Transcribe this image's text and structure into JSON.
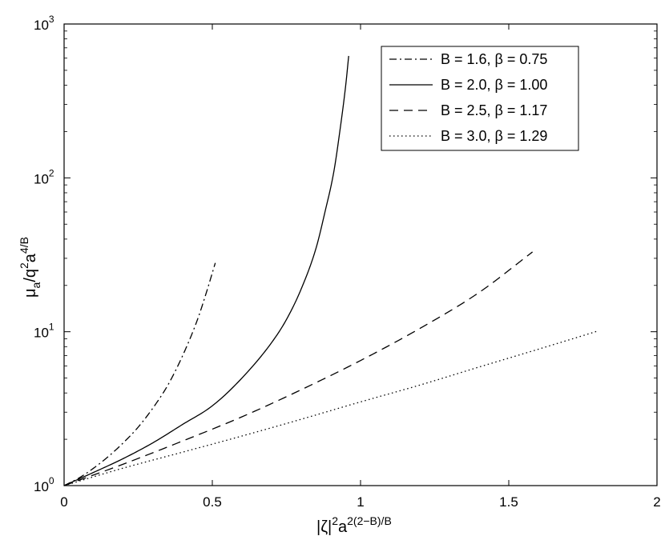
{
  "chart_data": {
    "type": "line",
    "xlabel": "|ζ|²a^(2(2−B)/B)",
    "ylabel": "μa/q²a^(4/B)",
    "xlabel_parts": {
      "base": "|ζ|",
      "sup1": "2",
      "mid": "a",
      "sup2": "2(2−B)/B"
    },
    "ylabel_parts": {
      "base": "μ",
      "sub": "a",
      "mid": "/q",
      "sup1": "2",
      "mid2": "a",
      "sup2": "4/B"
    },
    "xlim": [
      0,
      2
    ],
    "ylim": [
      1,
      1000
    ],
    "yscale": "log",
    "grid": false,
    "legend_position": "top-right",
    "x_ticks": [
      {
        "value": 0,
        "label": "0"
      },
      {
        "value": 0.5,
        "label": "0.5"
      },
      {
        "value": 1,
        "label": "1"
      },
      {
        "value": 1.5,
        "label": "1.5"
      },
      {
        "value": 2,
        "label": "2"
      }
    ],
    "y_ticks": [
      {
        "value": 1,
        "base": "10",
        "exp": "0"
      },
      {
        "value": 10,
        "base": "10",
        "exp": "1"
      },
      {
        "value": 100,
        "base": "10",
        "exp": "2"
      },
      {
        "value": 1000,
        "base": "10",
        "exp": "3"
      }
    ],
    "series": [
      {
        "name": "B = 1.6, β = 0.75",
        "style": "dashdot",
        "x": [
          0,
          0.05,
          0.1,
          0.15,
          0.2,
          0.25,
          0.3,
          0.35,
          0.4,
          0.45,
          0.48,
          0.51
        ],
        "y": [
          1.0,
          1.12,
          1.3,
          1.55,
          1.9,
          2.4,
          3.2,
          4.5,
          7.0,
          12.0,
          18.0,
          28.0
        ]
      },
      {
        "name": "B = 2.0, β = 1.00",
        "style": "solid",
        "x": [
          0,
          0.1,
          0.2,
          0.3,
          0.4,
          0.5,
          0.6,
          0.7,
          0.75,
          0.8,
          0.85,
          0.88,
          0.91,
          0.93,
          0.95,
          0.96
        ],
        "y": [
          1.0,
          1.22,
          1.5,
          1.9,
          2.5,
          3.3,
          5.0,
          8.5,
          12.0,
          19.0,
          35.0,
          60.0,
          110.0,
          200.0,
          400.0,
          620.0
        ]
      },
      {
        "name": "B = 2.5, β = 1.17",
        "style": "dashed",
        "x": [
          0,
          0.2,
          0.4,
          0.6,
          0.8,
          1.0,
          1.2,
          1.4,
          1.58
        ],
        "y": [
          1.0,
          1.38,
          1.95,
          2.8,
          4.2,
          6.5,
          10.5,
          18.0,
          33.0
        ]
      },
      {
        "name": "B = 3.0, β = 1.29",
        "style": "dotted",
        "x": [
          0,
          0.2,
          0.4,
          0.6,
          0.8,
          1.0,
          1.2,
          1.4,
          1.6,
          1.8
        ],
        "y": [
          1.0,
          1.3,
          1.65,
          2.1,
          2.7,
          3.5,
          4.5,
          5.9,
          7.7,
          10.1
        ]
      }
    ]
  }
}
